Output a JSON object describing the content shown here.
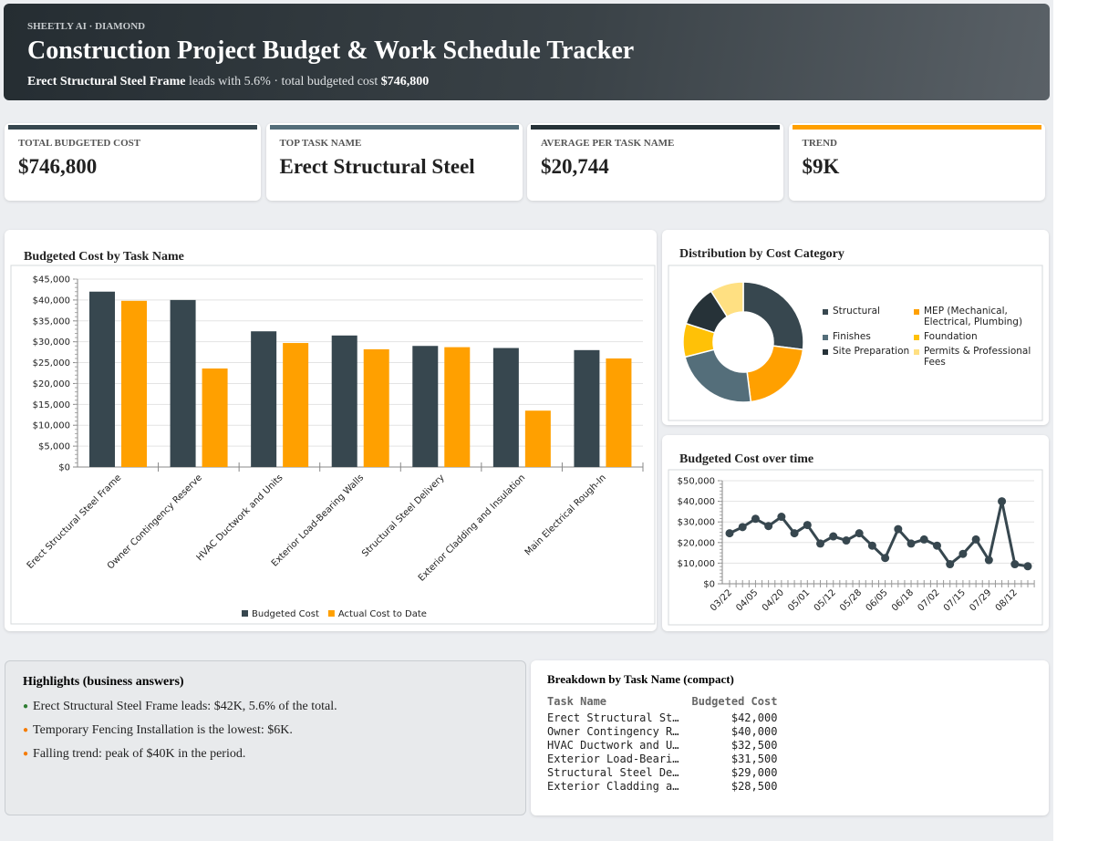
{
  "header": {
    "brand": "SHEETLY AI · DIAMOND",
    "title": "Construction Project Budget & Work Schedule Tracker",
    "subtitle": {
      "lead": "Erect Structural Steel Frame",
      "middle": "leads with 5.6% · total budgeted cost",
      "total": "$746,800"
    }
  },
  "kpis": [
    {
      "label": "TOTAL BUDGETED COST",
      "value": "$746,800",
      "color": "#37474f"
    },
    {
      "label": "TOP TASK NAME",
      "value": "Erect Structural Steel",
      "color": "#546e7a"
    },
    {
      "label": "AVERAGE PER TASK NAME",
      "value": "$20,744",
      "color": "#263238"
    },
    {
      "label": "TREND",
      "value": "$9K",
      "color": "#ffa000"
    }
  ],
  "chart_data": [
    {
      "type": "bar",
      "title": "Budgeted Cost by Task Name",
      "categories": [
        "Erect Structural Steel Frame",
        "Owner Contingency Reserve",
        "HVAC Ductwork and Units",
        "Exterior Load-Bearing Walls",
        "Structural Steel Delivery",
        "Exterior Cladding and Insulation",
        "Main Electrical Rough-In"
      ],
      "series": [
        {
          "name": "Budgeted Cost",
          "color": "#37474f",
          "values": [
            42000,
            40000,
            32500,
            31500,
            29000,
            28500,
            28000
          ]
        },
        {
          "name": "Actual Cost to Date",
          "color": "#ffa000",
          "values": [
            39800,
            23600,
            29700,
            28200,
            28700,
            13500,
            26000
          ]
        }
      ],
      "ylim": [
        0,
        45000
      ],
      "yticks": [
        {
          "value": 0,
          "label": "$0"
        },
        {
          "value": 5000,
          "label": "$5,000"
        },
        {
          "value": 10000,
          "label": "$10,000"
        },
        {
          "value": 15000,
          "label": "$15,000"
        },
        {
          "value": 20000,
          "label": "$20,000"
        },
        {
          "value": 25000,
          "label": "$25,000"
        },
        {
          "value": 30000,
          "label": "$30,000"
        },
        {
          "value": 35000,
          "label": "$35,000"
        },
        {
          "value": 40000,
          "label": "$40,000"
        },
        {
          "value": 45000,
          "label": "$45,000"
        }
      ],
      "grid": true,
      "legend": "bottom"
    },
    {
      "type": "donut",
      "title": "Distribution by Cost Category",
      "categories": [
        "Structural",
        "MEP (Mechanical, Electrical, Plumbing)",
        "Finishes",
        "Foundation",
        "Site Preparation",
        "Permits & Professional Fees"
      ],
      "values": [
        27,
        21,
        23,
        9,
        11,
        9
      ],
      "colors": [
        "#37474f",
        "#ffa000",
        "#546e7a",
        "#ffc107",
        "#263238",
        "#ffe082"
      ],
      "legend": "right"
    },
    {
      "type": "line",
      "title": "Budgeted Cost over time",
      "categories": [
        "03/22",
        null,
        "04/05",
        null,
        "04/20",
        null,
        "05/01",
        null,
        "05/12",
        null,
        "05/28",
        null,
        "06/05",
        null,
        "06/18",
        null,
        "07/02",
        null,
        "07/15",
        null,
        "07/29",
        null,
        "08/12",
        null
      ],
      "series": [
        {
          "name": "Budgeted Cost",
          "color": "#37474f",
          "values": [
            24500,
            27500,
            31500,
            28000,
            32500,
            24500,
            28500,
            19500,
            23000,
            21000,
            24500,
            18500,
            12500,
            26500,
            19500,
            21500,
            18500,
            9500,
            14500,
            21500,
            11500,
            40000,
            9500,
            8500
          ]
        }
      ],
      "ylim": [
        0,
        50000
      ],
      "yticks": [
        {
          "value": 0,
          "label": "$0"
        },
        {
          "value": 10000,
          "label": "$10,000"
        },
        {
          "value": 20000,
          "label": "$20,000"
        },
        {
          "value": 30000,
          "label": "$30,000"
        },
        {
          "value": 40000,
          "label": "$40,000"
        },
        {
          "value": 50000,
          "label": "$50,000"
        }
      ],
      "grid": true
    }
  ],
  "highlights": {
    "title": "Highlights (business answers)",
    "items": [
      "Erect Structural Steel Frame leads: $42K, 5.6% of the total.",
      "Temporary Fencing Installation is the lowest: $6K.",
      "Falling trend: peak of $40K in the period."
    ]
  },
  "table": {
    "title": "Breakdown by Task Name (compact)",
    "columns": [
      "Task Name",
      "Budgeted Cost"
    ],
    "rows": [
      [
        "Erect Structural St…",
        "$42,000"
      ],
      [
        "Owner Contingency R…",
        "$40,000"
      ],
      [
        "HVAC Ductwork and U…",
        "$32,500"
      ],
      [
        "Exterior Load-Beari…",
        "$31,500"
      ],
      [
        "Structural Steel De…",
        "$29,000"
      ],
      [
        "Exterior Cladding a…",
        "$28,500"
      ]
    ]
  }
}
